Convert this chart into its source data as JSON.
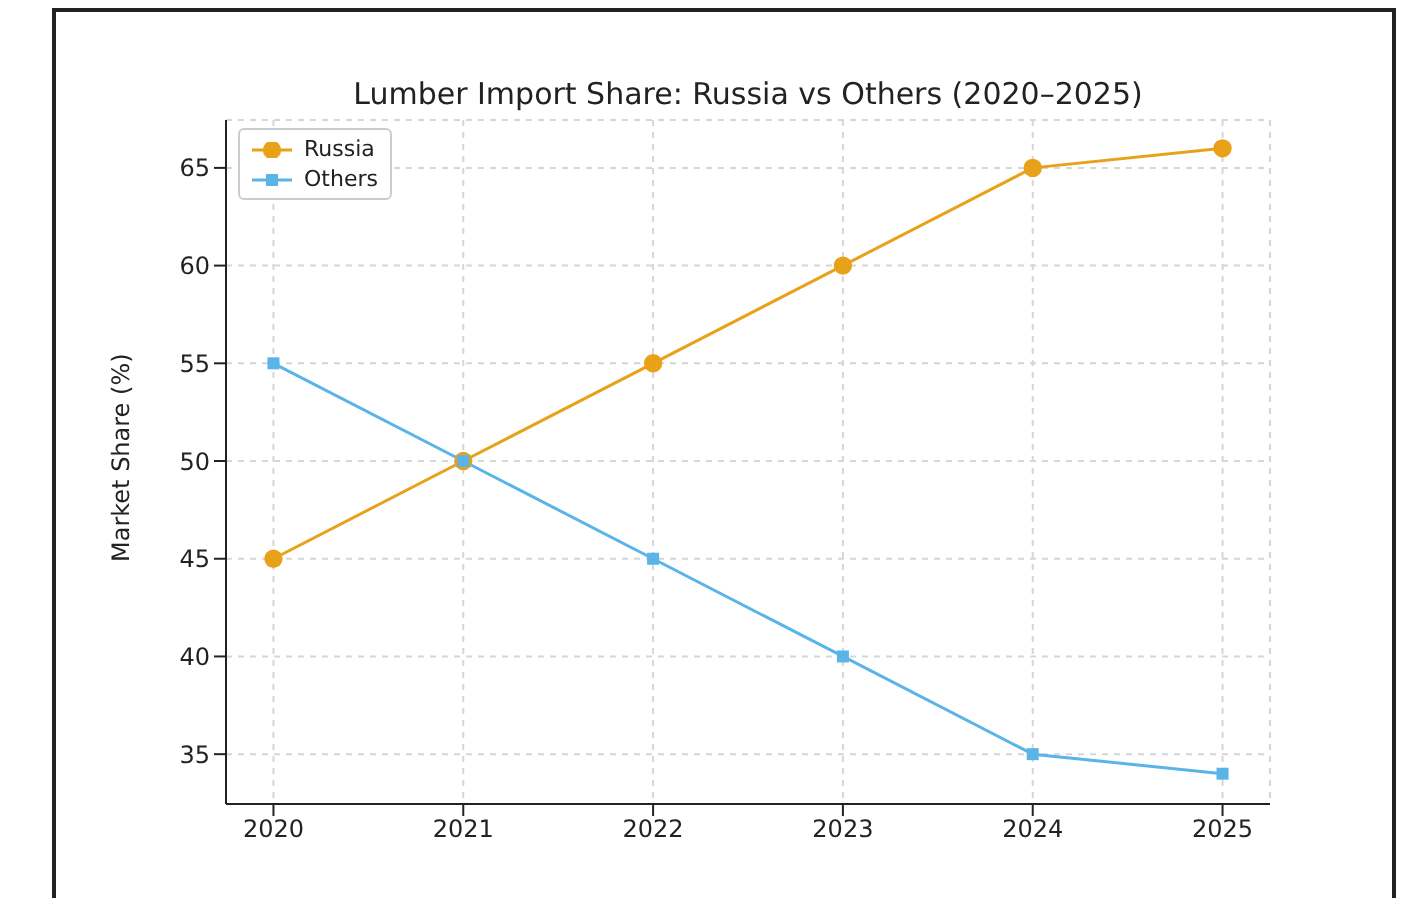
{
  "chart_data": {
    "type": "line",
    "title": "Lumber Import Share: Russia vs Others (2020–2025)",
    "ylabel": "Market Share (%)",
    "x": [
      2020,
      2021,
      2022,
      2023,
      2024,
      2025
    ],
    "series": [
      {
        "name": "Russia",
        "color": "#e8a21a",
        "marker": "circle",
        "values": [
          45,
          50,
          55,
          60,
          65,
          66
        ]
      },
      {
        "name": "Others",
        "color": "#5ab4e8",
        "marker": "square",
        "values": [
          55,
          50,
          45,
          40,
          35,
          34
        ]
      }
    ],
    "xlim": [
      2019.75,
      2025.25
    ],
    "xticks": [
      2020,
      2021,
      2022,
      2023,
      2024,
      2025
    ],
    "ylim": [
      32.45,
      67.45
    ],
    "yticks": [
      35,
      40,
      45,
      50,
      55,
      60,
      65
    ],
    "grid": true,
    "legend": "top left",
    "line_style": "solid"
  }
}
